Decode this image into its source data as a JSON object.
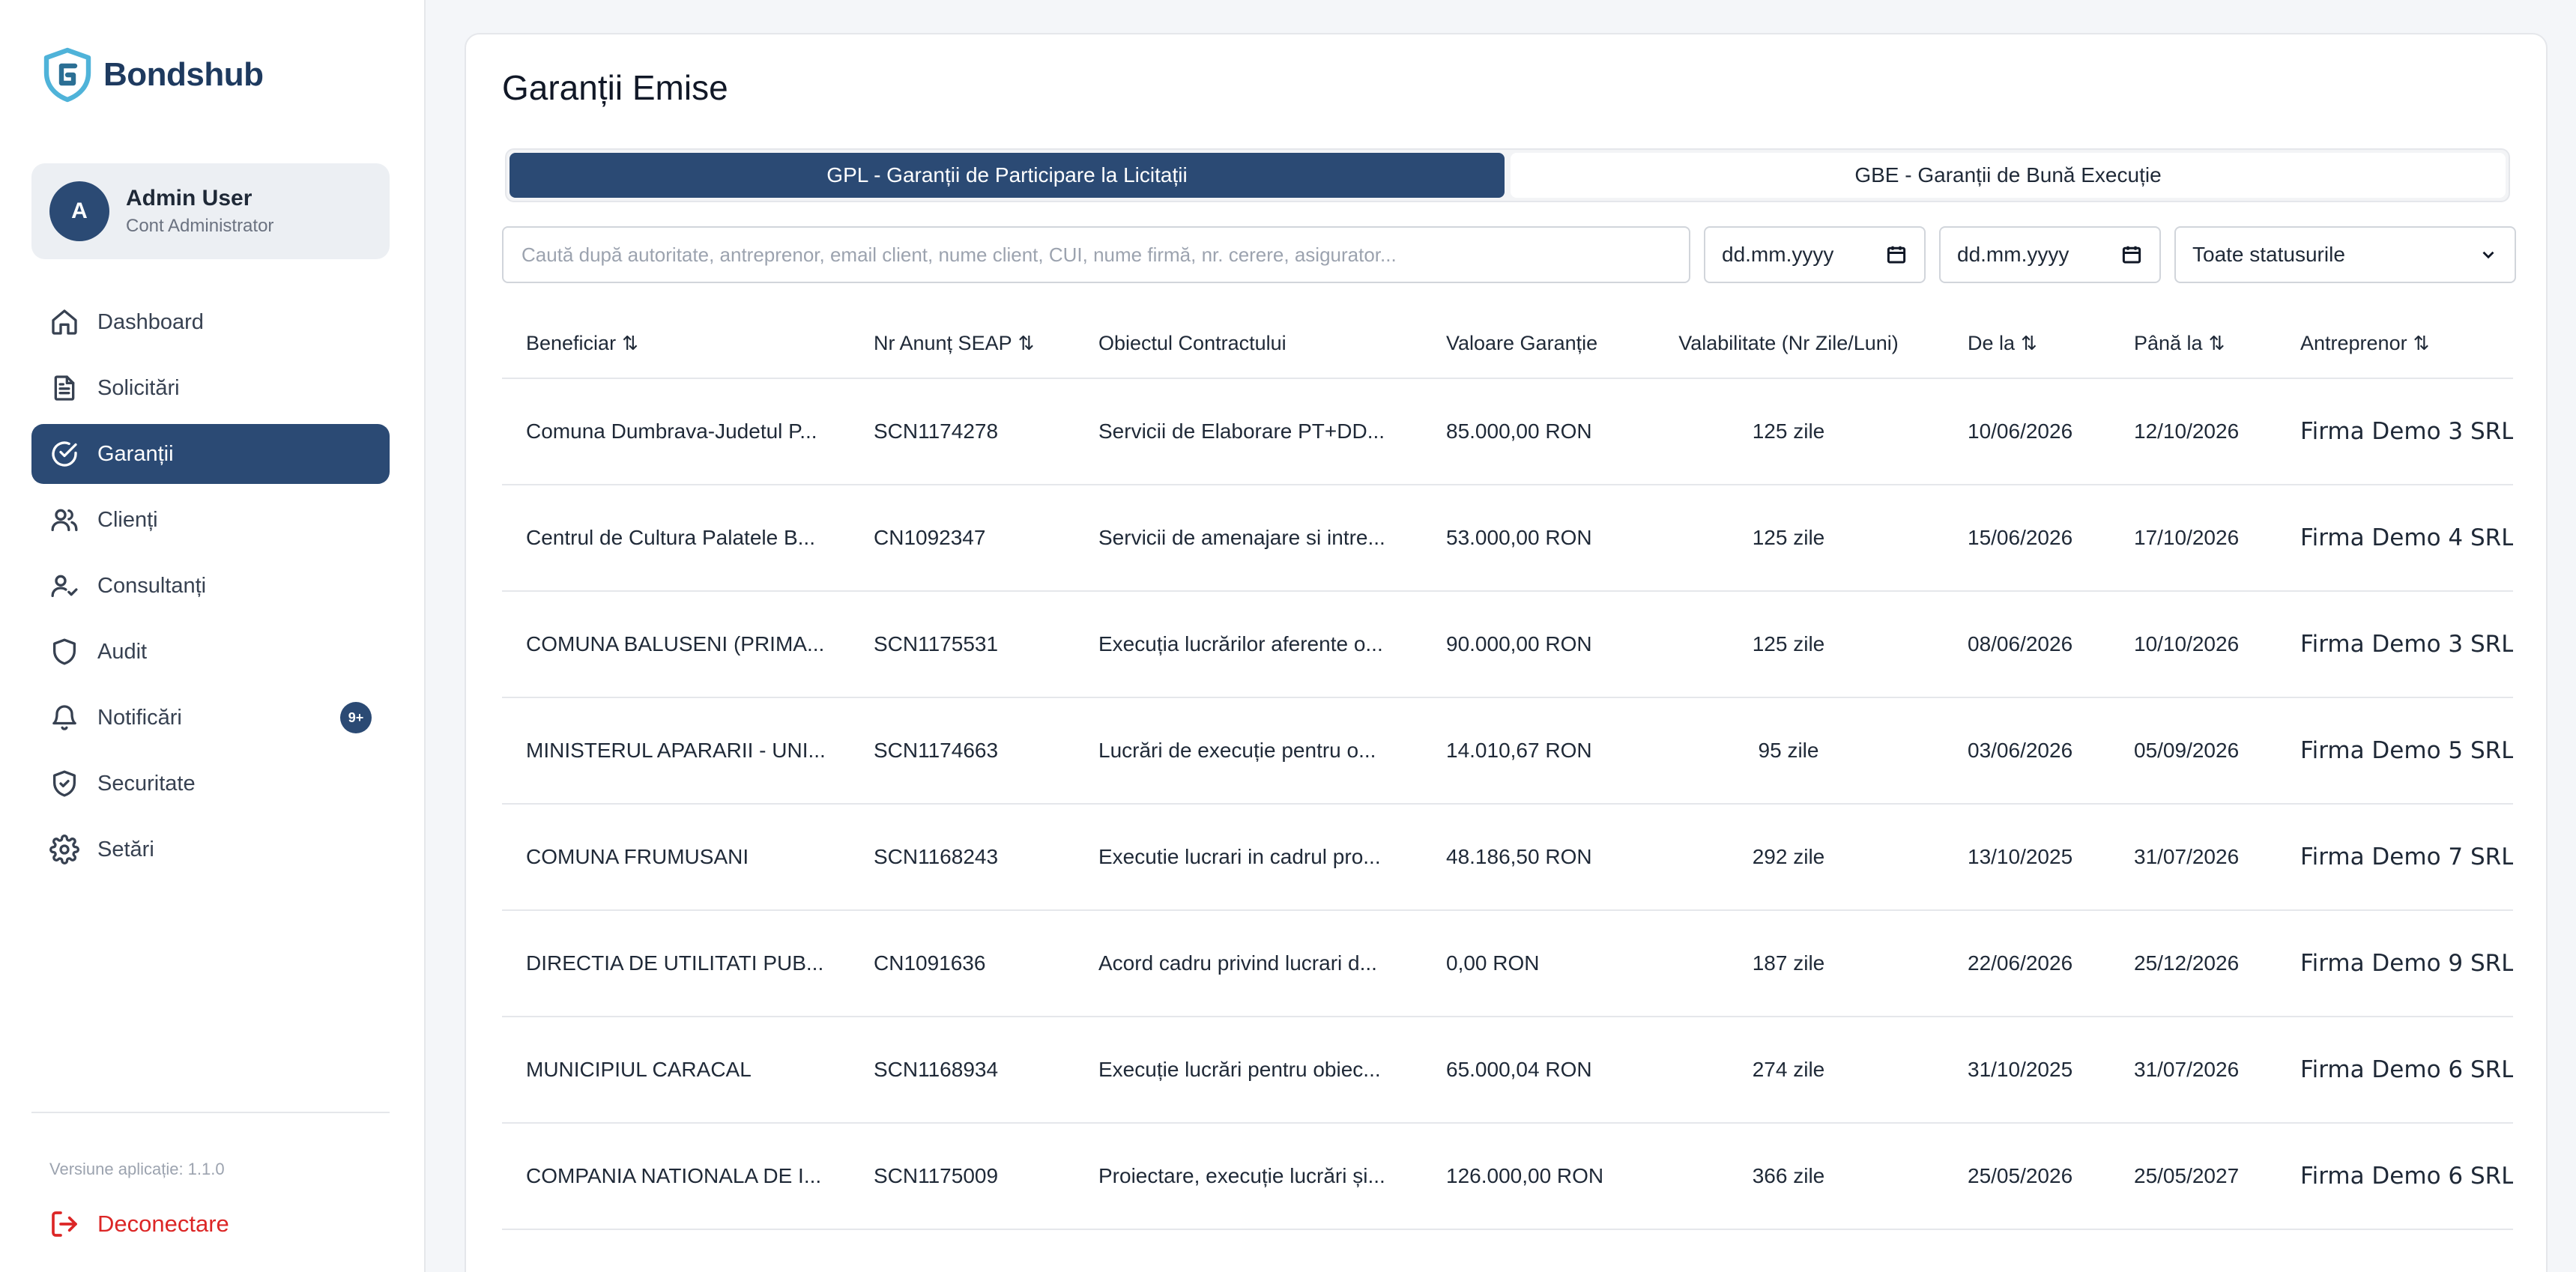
{
  "brand": {
    "name": "Bondshub"
  },
  "user": {
    "initial": "A",
    "name": "Admin User",
    "role": "Cont Administrator"
  },
  "nav": [
    {
      "label": "Dashboard",
      "icon": "home-icon",
      "active": false
    },
    {
      "label": "Solicitări",
      "icon": "document-icon",
      "active": false
    },
    {
      "label": "Garanții",
      "icon": "check-circle-icon",
      "active": true
    },
    {
      "label": "Clienți",
      "icon": "users-icon",
      "active": false
    },
    {
      "label": "Consultanți",
      "icon": "user-check-icon",
      "active": false
    },
    {
      "label": "Audit",
      "icon": "shield-icon",
      "active": false
    },
    {
      "label": "Notificări",
      "icon": "bell-icon",
      "active": false,
      "badge": "9+"
    },
    {
      "label": "Securitate",
      "icon": "shield-check-icon",
      "active": false
    },
    {
      "label": "Setări",
      "icon": "gear-icon",
      "active": false
    }
  ],
  "footer": {
    "version": "Versiune aplicație: 1.1.0",
    "logout": "Deconectare"
  },
  "page": {
    "title": "Garanții Emise",
    "tabs": [
      {
        "label": "GPL - Garanții de Participare la Licitații",
        "active": true
      },
      {
        "label": "GBE - Garanții de Bună Execuție",
        "active": false
      }
    ]
  },
  "filters": {
    "search_placeholder": "Caută după autoritate, antreprenor, email client, nume client, CUI, nume firmă, nr. cerere, asigurator...",
    "date_from": "dd.mm.yyyy",
    "date_to": "dd.mm.yyyy",
    "status": "Toate statusurile"
  },
  "table": {
    "headers": [
      {
        "label": "Beneficiar",
        "sortable": true
      },
      {
        "label": "Nr Anunț SEAP",
        "sortable": true
      },
      {
        "label": "Obiectul Contractului",
        "sortable": false
      },
      {
        "label": "Valoare Garanție",
        "sortable": false
      },
      {
        "label": "Valabilitate (Nr Zile/Luni)",
        "sortable": false
      },
      {
        "label": "De la",
        "sortable": true
      },
      {
        "label": "Până la",
        "sortable": true
      },
      {
        "label": "Antreprenor",
        "sortable": true
      }
    ],
    "sort_glyph": "⇅",
    "rows": [
      [
        "Comuna Dumbrava-Judetul P...",
        "SCN1174278",
        "Servicii de Elaborare PT+DD...",
        "85.000,00 RON",
        "125 zile",
        "10/06/2026",
        "12/10/2026",
        "Firma Demo 3 SRL"
      ],
      [
        "Centrul de Cultura Palatele B...",
        "CN1092347",
        "Servicii de amenajare si intre...",
        "53.000,00 RON",
        "125 zile",
        "15/06/2026",
        "17/10/2026",
        "Firma Demo 4 SRL"
      ],
      [
        "COMUNA BALUSENI (PRIMA...",
        "SCN1175531",
        "Execuția lucrărilor aferente o...",
        "90.000,00 RON",
        "125 zile",
        "08/06/2026",
        "10/10/2026",
        "Firma Demo 3 SRL"
      ],
      [
        "MINISTERUL APARARII - UNI...",
        "SCN1174663",
        "Lucrări de execuție pentru o...",
        "14.010,67 RON",
        "95 zile",
        "03/06/2026",
        "05/09/2026",
        "Firma Demo 5 SRL"
      ],
      [
        "COMUNA FRUMUSANI",
        "SCN1168243",
        "Executie lucrari in cadrul pro...",
        "48.186,50 RON",
        "292 zile",
        "13/10/2025",
        "31/07/2026",
        "Firma Demo 7 SRL"
      ],
      [
        "DIRECTIA DE UTILITATI PUB...",
        "CN1091636",
        "Acord cadru privind lucrari d...",
        "0,00 RON",
        "187 zile",
        "22/06/2026",
        "25/12/2026",
        "Firma Demo 9 SRL"
      ],
      [
        "MUNICIPIUL CARACAL",
        "SCN1168934",
        "Execuție lucrări pentru obiec...",
        "65.000,04 RON",
        "274 zile",
        "31/10/2025",
        "31/07/2026",
        "Firma Demo 6 SRL"
      ],
      [
        "COMPANIA NATIONALA DE I...",
        "SCN1175009",
        "Proiectare, execuție lucrări și...",
        "126.000,00 RON",
        "366 zile",
        "25/05/2026",
        "25/05/2027",
        "Firma Demo 6 SRL"
      ]
    ]
  }
}
